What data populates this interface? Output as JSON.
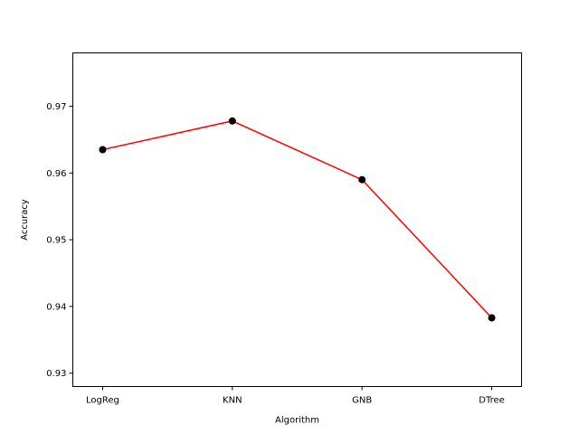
{
  "chart_data": {
    "type": "line",
    "title": "",
    "xlabel": "Algorithm",
    "ylabel": "Accuracy",
    "categories": [
      "LogReg",
      "KNN",
      "GNB",
      "DTree"
    ],
    "series": [
      {
        "values": [
          0.9635,
          0.9678,
          0.959,
          0.9383
        ]
      }
    ],
    "ylim": [
      0.928,
      0.978
    ],
    "yticks": [
      0.93,
      0.94,
      0.95,
      0.96,
      0.97
    ],
    "ytick_labels": [
      "0.93",
      "0.94",
      "0.95",
      "0.96",
      "0.97"
    ],
    "grid": false,
    "line_color": "#ff0000",
    "marker_color": "#000000"
  }
}
